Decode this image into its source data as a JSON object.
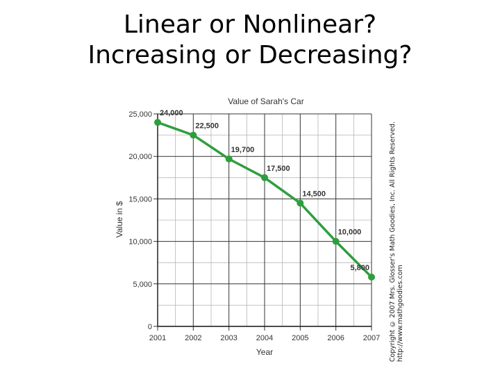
{
  "slide": {
    "title_line1": "Linear or Nonlinear?",
    "title_line2": "Increasing or Decreasing?"
  },
  "copyright": {
    "line1": "Copyright © 2007 Mrs. Glosser's Math Goodies, Inc. All Rights Reserved.",
    "line2": "http://www.mathgoodies.com"
  },
  "chart_data": {
    "type": "line",
    "title": "Value of Sarah's Car",
    "xlabel": "Year",
    "ylabel": "Value in $",
    "categories": [
      "2001",
      "2002",
      "2003",
      "2004",
      "2005",
      "2006",
      "2007"
    ],
    "series": [
      {
        "values": [
          24000,
          22500,
          19700,
          17500,
          14500,
          10000,
          5800
        ],
        "labels": [
          "24,000",
          "22,500",
          "19,700",
          "17,500",
          "14,500",
          "10,000",
          "5,800"
        ]
      }
    ],
    "yticks": [
      0,
      5000,
      10000,
      15000,
      20000,
      25000
    ],
    "ytick_labels": [
      "0",
      "5,000",
      "10,000",
      "15,000",
      "20,000",
      "25,000"
    ],
    "ylim": [
      0,
      25000
    ],
    "grid": true,
    "line_color": "#2e9e3e",
    "grid_color": "#333333"
  }
}
